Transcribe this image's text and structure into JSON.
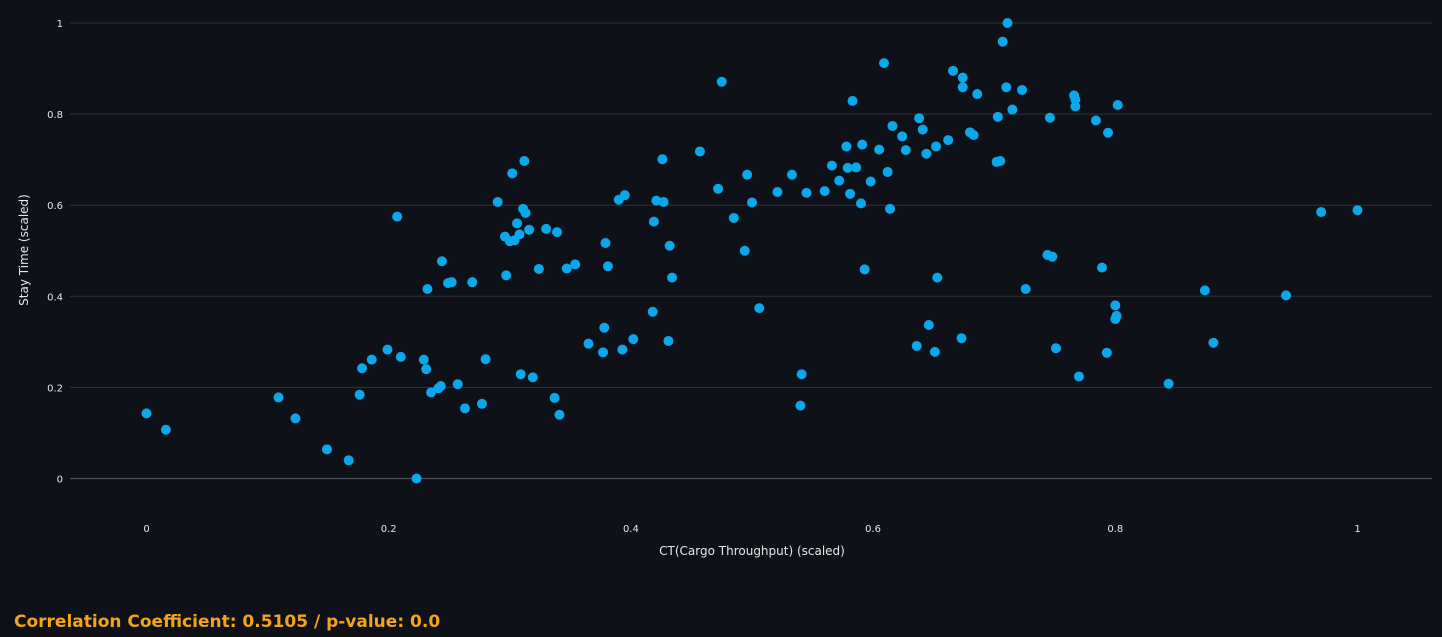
{
  "stats_text": "Correlation Coefficient: 0.5105 / p-value: 0.0",
  "colors": {
    "background": "#0e1117",
    "marker": "#0aa8ea",
    "stats": "#f5a31a",
    "text": "#e6e6e6"
  },
  "chart_data": {
    "type": "scatter",
    "xlabel": "CT(Cargo Throughput) (scaled)",
    "ylabel": "Stay Time (scaled)",
    "xlim": [
      -0.08,
      1.06
    ],
    "ylim": [
      -0.07,
      1.02
    ],
    "x_ticks": [
      {
        "value": 0,
        "label": "0"
      },
      {
        "value": 0.2,
        "label": "0.2"
      },
      {
        "value": 0.4,
        "label": "0.4"
      },
      {
        "value": 0.6,
        "label": "0.6"
      },
      {
        "value": 0.8,
        "label": "0.8"
      },
      {
        "value": 1,
        "label": "1"
      }
    ],
    "y_ticks": [
      {
        "value": 0,
        "label": "0"
      },
      {
        "value": 0.2,
        "label": "0.2"
      },
      {
        "value": 0.4,
        "label": "0.4"
      },
      {
        "value": 0.6,
        "label": "0.6"
      },
      {
        "value": 0.8,
        "label": "0.8"
      },
      {
        "value": 1,
        "label": "1"
      }
    ],
    "grid": true,
    "points": [
      [
        0.0,
        0.143
      ],
      [
        0.016,
        0.107
      ],
      [
        0.109,
        0.178
      ],
      [
        0.123,
        0.132
      ],
      [
        0.149,
        0.064
      ],
      [
        0.167,
        0.04
      ],
      [
        0.176,
        0.184
      ],
      [
        0.178,
        0.242
      ],
      [
        0.186,
        0.261
      ],
      [
        0.199,
        0.283
      ],
      [
        0.207,
        0.575
      ],
      [
        0.21,
        0.267
      ],
      [
        0.223,
        0.0
      ],
      [
        0.229,
        0.261
      ],
      [
        0.231,
        0.24
      ],
      [
        0.232,
        0.416
      ],
      [
        0.235,
        0.189
      ],
      [
        0.241,
        0.198
      ],
      [
        0.243,
        0.203
      ],
      [
        0.244,
        0.477
      ],
      [
        0.249,
        0.429
      ],
      [
        0.252,
        0.431
      ],
      [
        0.257,
        0.207
      ],
      [
        0.263,
        0.154
      ],
      [
        0.269,
        0.431
      ],
      [
        0.277,
        0.164
      ],
      [
        0.28,
        0.262
      ],
      [
        0.29,
        0.607
      ],
      [
        0.296,
        0.531
      ],
      [
        0.297,
        0.446
      ],
      [
        0.3,
        0.521
      ],
      [
        0.302,
        0.67
      ],
      [
        0.304,
        0.523
      ],
      [
        0.306,
        0.56
      ],
      [
        0.308,
        0.536
      ],
      [
        0.309,
        0.229
      ],
      [
        0.311,
        0.592
      ],
      [
        0.312,
        0.697
      ],
      [
        0.313,
        0.583
      ],
      [
        0.316,
        0.546
      ],
      [
        0.319,
        0.222
      ],
      [
        0.324,
        0.46
      ],
      [
        0.33,
        0.548
      ],
      [
        0.337,
        0.177
      ],
      [
        0.339,
        0.541
      ],
      [
        0.341,
        0.14
      ],
      [
        0.347,
        0.461
      ],
      [
        0.354,
        0.47
      ],
      [
        0.365,
        0.296
      ],
      [
        0.377,
        0.277
      ],
      [
        0.378,
        0.331
      ],
      [
        0.379,
        0.517
      ],
      [
        0.381,
        0.466
      ],
      [
        0.39,
        0.612
      ],
      [
        0.393,
        0.283
      ],
      [
        0.395,
        0.622
      ],
      [
        0.402,
        0.306
      ],
      [
        0.418,
        0.366
      ],
      [
        0.419,
        0.564
      ],
      [
        0.421,
        0.61
      ],
      [
        0.426,
        0.701
      ],
      [
        0.427,
        0.607
      ],
      [
        0.431,
        0.302
      ],
      [
        0.432,
        0.511
      ],
      [
        0.434,
        0.441
      ],
      [
        0.457,
        0.718
      ],
      [
        0.472,
        0.636
      ],
      [
        0.475,
        0.871
      ],
      [
        0.485,
        0.572
      ],
      [
        0.494,
        0.5
      ],
      [
        0.496,
        0.667
      ],
      [
        0.5,
        0.606
      ],
      [
        0.506,
        0.374
      ],
      [
        0.521,
        0.629
      ],
      [
        0.533,
        0.667
      ],
      [
        0.54,
        0.16
      ],
      [
        0.541,
        0.229
      ],
      [
        0.545,
        0.627
      ],
      [
        0.56,
        0.631
      ],
      [
        0.566,
        0.687
      ],
      [
        0.572,
        0.654
      ],
      [
        0.578,
        0.729
      ],
      [
        0.579,
        0.682
      ],
      [
        0.581,
        0.625
      ],
      [
        0.583,
        0.829
      ],
      [
        0.586,
        0.683
      ],
      [
        0.59,
        0.604
      ],
      [
        0.591,
        0.733
      ],
      [
        0.593,
        0.459
      ],
      [
        0.598,
        0.652
      ],
      [
        0.605,
        0.722
      ],
      [
        0.609,
        0.912
      ],
      [
        0.612,
        0.673
      ],
      [
        0.614,
        0.592
      ],
      [
        0.616,
        0.774
      ],
      [
        0.624,
        0.751
      ],
      [
        0.627,
        0.721
      ],
      [
        0.636,
        0.291
      ],
      [
        0.638,
        0.791
      ],
      [
        0.641,
        0.766
      ],
      [
        0.644,
        0.713
      ],
      [
        0.646,
        0.337
      ],
      [
        0.651,
        0.278
      ],
      [
        0.653,
        0.441
      ],
      [
        0.652,
        0.729
      ],
      [
        0.662,
        0.743
      ],
      [
        0.666,
        0.895
      ],
      [
        0.673,
        0.308
      ],
      [
        0.674,
        0.859
      ],
      [
        0.674,
        0.88
      ],
      [
        0.68,
        0.76
      ],
      [
        0.683,
        0.754
      ],
      [
        0.686,
        0.844
      ],
      [
        0.702,
        0.695
      ],
      [
        0.703,
        0.794
      ],
      [
        0.705,
        0.697
      ],
      [
        0.707,
        0.959
      ],
      [
        0.71,
        0.859
      ],
      [
        0.711,
        1.0
      ],
      [
        0.715,
        0.81
      ],
      [
        0.723,
        0.853
      ],
      [
        0.726,
        0.416
      ],
      [
        0.744,
        0.491
      ],
      [
        0.746,
        0.792
      ],
      [
        0.748,
        0.487
      ],
      [
        0.751,
        0.286
      ],
      [
        0.766,
        0.841
      ],
      [
        0.767,
        0.832
      ],
      [
        0.767,
        0.817
      ],
      [
        0.77,
        0.224
      ],
      [
        0.784,
        0.786
      ],
      [
        0.789,
        0.463
      ],
      [
        0.793,
        0.276
      ],
      [
        0.794,
        0.759
      ],
      [
        0.8,
        0.38
      ],
      [
        0.8,
        0.35
      ],
      [
        0.801,
        0.357
      ],
      [
        0.802,
        0.82
      ],
      [
        0.844,
        0.208
      ],
      [
        0.874,
        0.413
      ],
      [
        0.881,
        0.298
      ],
      [
        0.941,
        0.402
      ],
      [
        0.97,
        0.585
      ],
      [
        1.0,
        0.589
      ]
    ]
  }
}
